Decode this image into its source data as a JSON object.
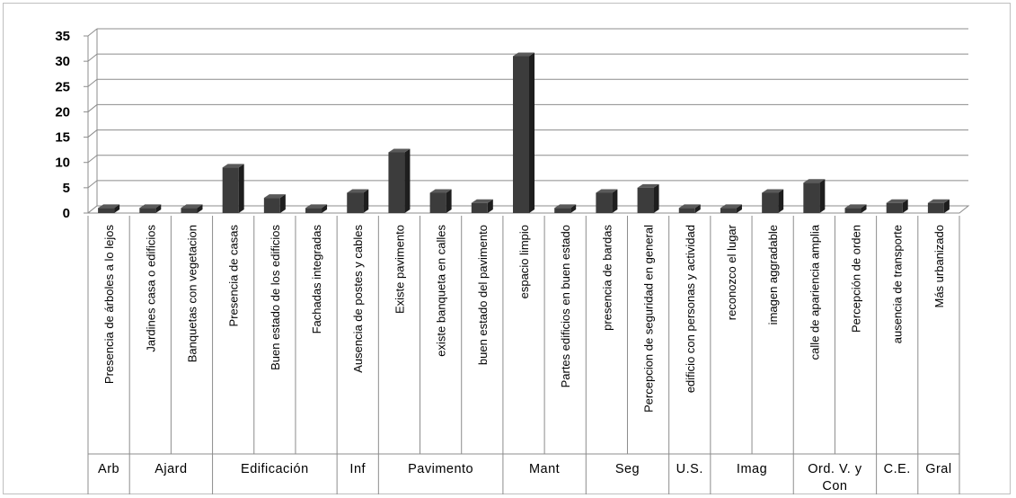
{
  "chart_data": {
    "type": "bar",
    "ylim": [
      0,
      35
    ],
    "yticks": [
      0,
      5,
      10,
      15,
      20,
      25,
      30,
      35
    ],
    "grid": true,
    "style": "3d",
    "bar_color": "#3c3c3c",
    "categories": [
      "Presencia de árboles a lo lejos",
      "Jardines casa o edificios",
      "Banquetas con vegetacion",
      "Presencia de casas",
      "Buen estado de los edificios",
      "Fachadas integradas",
      "Ausencia de postes y cables",
      "Existe pavimento",
      "existe banqueta en calles",
      "buen estado del pavimento",
      "espacio limpio",
      "Partes edificios en buen estado",
      "presencia de bardas",
      "Percepcion de seguridad en general",
      "edificio con personas y actividad",
      "reconozco el lugar",
      "imagen aggradable",
      "calle de apariencia amplia",
      "Percepción de orden",
      "ausencia de transporte",
      "Más urbanizado"
    ],
    "values": [
      1,
      1,
      1,
      9,
      3,
      1,
      4,
      12,
      4,
      2,
      31,
      1,
      4,
      5,
      1,
      1,
      4,
      6,
      1,
      2,
      2
    ],
    "groups": [
      {
        "label": "Arb",
        "count": 1
      },
      {
        "label": "Ajard",
        "count": 2
      },
      {
        "label": "Edificación",
        "count": 3
      },
      {
        "label": "Inf",
        "count": 1
      },
      {
        "label": "Pavimento",
        "count": 3
      },
      {
        "label": "Mant",
        "count": 2
      },
      {
        "label": "Seg",
        "count": 2
      },
      {
        "label": "U.S.",
        "count": 1
      },
      {
        "label": "Imag",
        "count": 2
      },
      {
        "label": "Ord. V. y Con",
        "count": 2
      },
      {
        "label": "C.E.",
        "count": 1
      },
      {
        "label": "Gral",
        "count": 1
      }
    ]
  }
}
